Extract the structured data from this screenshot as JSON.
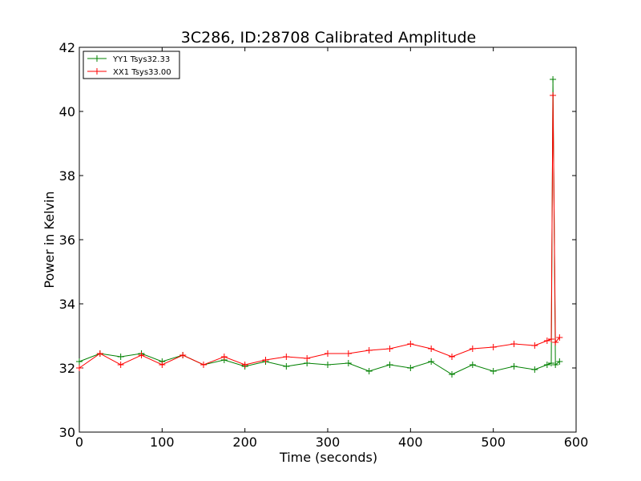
{
  "chart_data": {
    "type": "line",
    "title": "3C286, ID:28708 Calibrated Amplitude",
    "xlabel": "Time (seconds)",
    "ylabel": "Power in Kelvin",
    "xlim": [
      0,
      600
    ],
    "ylim": [
      30,
      42
    ],
    "xticks": [
      "0",
      "100",
      "200",
      "300",
      "400",
      "500",
      "600"
    ],
    "yticks": [
      "30",
      "32",
      "34",
      "36",
      "38",
      "40",
      "42"
    ],
    "grid": false,
    "legend_position": "top-left",
    "series": [
      {
        "name": "YY1 Tsys32.33",
        "color": "#008000",
        "x": [
          0,
          25,
          50,
          75,
          100,
          125,
          150,
          175,
          200,
          225,
          250,
          275,
          300,
          325,
          350,
          375,
          400,
          425,
          450,
          475,
          500,
          525,
          550,
          565,
          570,
          572,
          575,
          580
        ],
        "y": [
          32.2,
          32.45,
          32.35,
          32.45,
          32.2,
          32.4,
          32.1,
          32.25,
          32.05,
          32.2,
          32.05,
          32.15,
          32.1,
          32.15,
          31.9,
          32.1,
          32.0,
          32.2,
          31.8,
          32.1,
          31.9,
          32.05,
          31.95,
          32.1,
          32.15,
          41.0,
          32.1,
          32.2
        ]
      },
      {
        "name": "XX1 Tsys33.00",
        "color": "#ff0000",
        "x": [
          0,
          25,
          50,
          75,
          100,
          125,
          150,
          175,
          200,
          225,
          250,
          275,
          300,
          325,
          350,
          375,
          400,
          425,
          450,
          475,
          500,
          525,
          550,
          565,
          570,
          572,
          575,
          580
        ],
        "y": [
          32.0,
          32.45,
          32.1,
          32.4,
          32.1,
          32.4,
          32.1,
          32.35,
          32.1,
          32.25,
          32.35,
          32.3,
          32.45,
          32.45,
          32.55,
          32.6,
          32.75,
          32.6,
          32.35,
          32.6,
          32.65,
          32.75,
          32.7,
          32.85,
          32.9,
          40.5,
          32.8,
          32.95
        ]
      }
    ]
  }
}
